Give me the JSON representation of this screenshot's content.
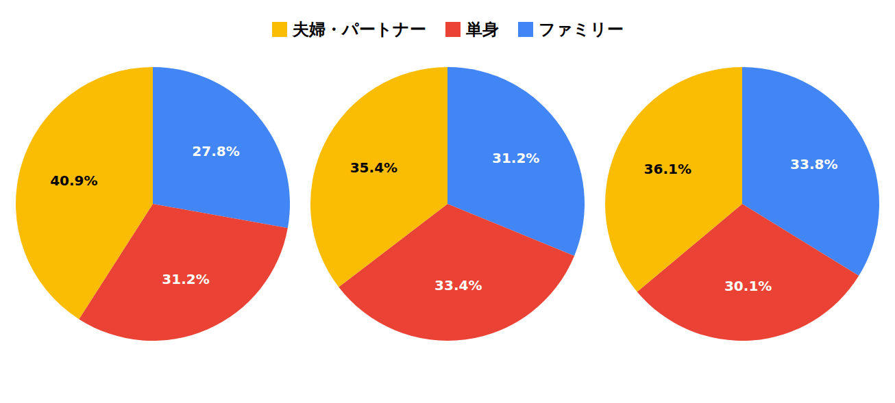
{
  "chart_data": [
    {
      "type": "pie",
      "categories": [
        "ファミリー",
        "単身",
        "夫婦・パートナー"
      ],
      "values": [
        27.8,
        31.2,
        40.9
      ],
      "value_labels": [
        "27.8%",
        "31.2%",
        "40.9%"
      ],
      "colors": [
        "#4285F4",
        "#EA4335",
        "#FBBC04"
      ],
      "data_labels": true,
      "legend": "top"
    },
    {
      "type": "pie",
      "categories": [
        "ファミリー",
        "単身",
        "夫婦・パートナー"
      ],
      "values": [
        31.2,
        33.4,
        35.4
      ],
      "value_labels": [
        "31.2%",
        "33.4%",
        "35.4%"
      ],
      "colors": [
        "#4285F4",
        "#EA4335",
        "#FBBC04"
      ],
      "data_labels": true,
      "legend": "top"
    },
    {
      "type": "pie",
      "categories": [
        "ファミリー",
        "単身",
        "夫婦・パートナー"
      ],
      "values": [
        33.8,
        30.1,
        36.1
      ],
      "value_labels": [
        "33.8%",
        "30.1%",
        "36.1%"
      ],
      "colors": [
        "#4285F4",
        "#EA4335",
        "#FBBC04"
      ],
      "data_labels": true,
      "legend": "top"
    }
  ]
}
